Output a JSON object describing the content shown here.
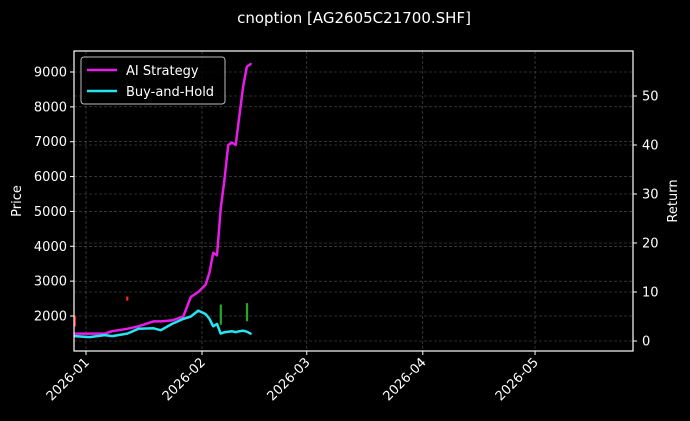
{
  "chart_data": {
    "type": "line",
    "title": "cnoption [AG2605C21700.SHF]",
    "xlabel": "",
    "ylabel_left": "Price",
    "ylabel_right": "Return",
    "x_ticks": [
      "2026-01",
      "2026-02",
      "2026-03",
      "2026-04",
      "2026-05"
    ],
    "y_left_ticks": [
      2000,
      3000,
      4000,
      5000,
      6000,
      7000,
      8000,
      9000
    ],
    "y_right_ticks": [
      0,
      10,
      20,
      30,
      40,
      50
    ],
    "y_left_range": [
      1300,
      9600
    ],
    "y_right_range": [
      -1.5,
      59
    ],
    "grid": true,
    "legend_position": "upper left",
    "background": "#000000",
    "series": [
      {
        "name": "AI Strategy",
        "axis": "right",
        "color": "#e81ce8",
        "x": [
          "2025-12-29",
          "2026-01-02",
          "2026-01-06",
          "2026-01-08",
          "2026-01-12",
          "2026-01-15",
          "2026-01-19",
          "2026-01-21",
          "2026-01-24",
          "2026-01-27",
          "2026-01-29",
          "2026-01-31",
          "2026-02-02",
          "2026-02-03",
          "2026-02-04",
          "2026-02-05",
          "2026-02-06",
          "2026-02-07",
          "2026-02-08",
          "2026-02-09",
          "2026-02-10",
          "2026-02-11",
          "2026-02-12",
          "2026-02-13",
          "2026-02-14"
        ],
        "values": [
          1.5,
          1.5,
          1.5,
          2.0,
          2.5,
          3.0,
          4.0,
          4.0,
          4.2,
          5.0,
          9.0,
          10.0,
          11.5,
          14.0,
          18.0,
          17.5,
          27.0,
          33.0,
          40.0,
          40.5,
          40.0,
          46.0,
          52.0,
          56.0,
          56.5
        ]
      },
      {
        "name": "Buy-and-Hold",
        "axis": "right",
        "color": "#27e5f0",
        "x": [
          "2025-12-29",
          "2026-01-02",
          "2026-01-06",
          "2026-01-08",
          "2026-01-12",
          "2026-01-15",
          "2026-01-19",
          "2026-01-21",
          "2026-01-24",
          "2026-01-27",
          "2026-01-29",
          "2026-01-31",
          "2026-02-02",
          "2026-02-03",
          "2026-02-04",
          "2026-02-05",
          "2026-02-06",
          "2026-02-07",
          "2026-02-08",
          "2026-02-09",
          "2026-02-10",
          "2026-02-11",
          "2026-02-12",
          "2026-02-13",
          "2026-02-14"
        ],
        "values": [
          1.0,
          0.8,
          1.2,
          1.0,
          1.5,
          2.5,
          2.6,
          2.2,
          3.5,
          4.5,
          5.0,
          6.2,
          5.5,
          4.5,
          3.0,
          3.5,
          1.5,
          1.8,
          1.9,
          2.0,
          1.8,
          2.0,
          2.1,
          1.9,
          1.5
        ]
      }
    ],
    "candles": [
      {
        "x": "2025-12-29",
        "low": 1700,
        "high": 2000,
        "color": "#ff2020"
      },
      {
        "x": "2026-01-12",
        "low": 2440,
        "high": 2560,
        "color": "#ff2020"
      },
      {
        "x": "2026-02-06",
        "low": 1750,
        "high": 2330,
        "color": "#22aa22"
      },
      {
        "x": "2026-02-13",
        "low": 1850,
        "high": 2370,
        "color": "#22aa22"
      }
    ],
    "legend": [
      {
        "label": "AI Strategy",
        "color": "#e81ce8"
      },
      {
        "label": "Buy-and-Hold",
        "color": "#27e5f0"
      }
    ]
  }
}
